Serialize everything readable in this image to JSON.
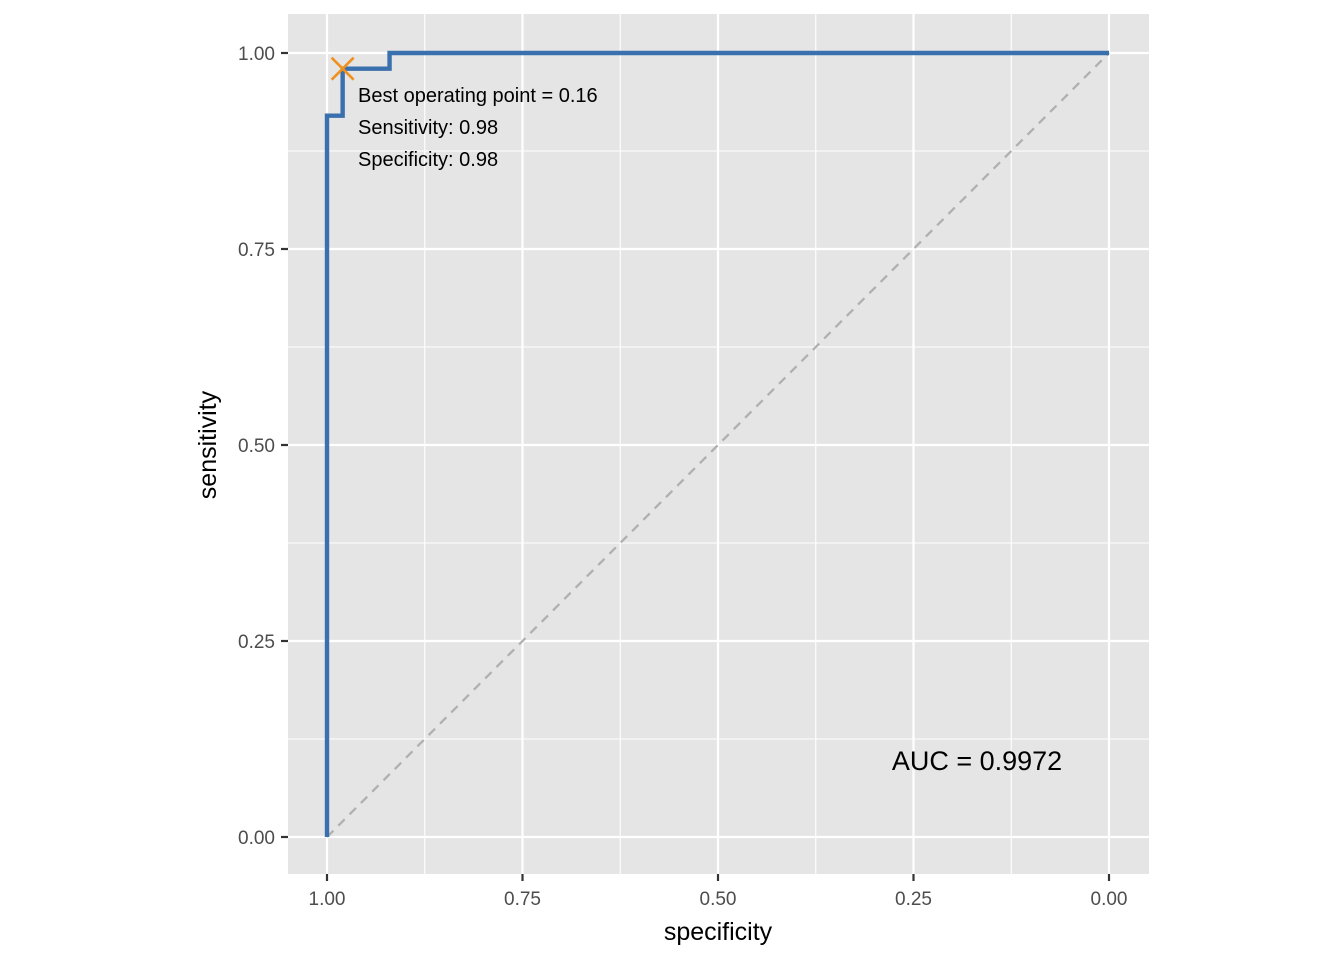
{
  "chart_data": {
    "type": "line",
    "xlabel": "specificity",
    "ylabel": "sensitivity",
    "x_reversed": true,
    "xlim": [
      1.0,
      0.0
    ],
    "ylim": [
      0.0,
      1.0
    ],
    "x_ticks": [
      {
        "value": 1.0,
        "label": "1.00"
      },
      {
        "value": 0.75,
        "label": "0.75"
      },
      {
        "value": 0.5,
        "label": "0.50"
      },
      {
        "value": 0.25,
        "label": "0.25"
      },
      {
        "value": 0.0,
        "label": "0.00"
      }
    ],
    "y_ticks": [
      {
        "value": 0.0,
        "label": "0.00"
      },
      {
        "value": 0.25,
        "label": "0.25"
      },
      {
        "value": 0.5,
        "label": "0.50"
      },
      {
        "value": 0.75,
        "label": "0.75"
      },
      {
        "value": 1.0,
        "label": "1.00"
      }
    ],
    "grid": true,
    "series": [
      {
        "color": "#3a70ad",
        "points": [
          {
            "specificity": 1.0,
            "sensitivity": 0.0
          },
          {
            "specificity": 1.0,
            "sensitivity": 0.92
          },
          {
            "specificity": 0.98,
            "sensitivity": 0.92
          },
          {
            "specificity": 0.98,
            "sensitivity": 0.98
          },
          {
            "specificity": 0.92,
            "sensitivity": 0.98
          },
          {
            "specificity": 0.92,
            "sensitivity": 1.0
          },
          {
            "specificity": 0.0,
            "sensitivity": 1.0
          }
        ]
      }
    ],
    "reference_line": {
      "from": {
        "specificity": 1.0,
        "sensitivity": 0.0
      },
      "to": {
        "specificity": 0.0,
        "sensitivity": 1.0
      },
      "style": "dashed",
      "color": "#b0b0b0"
    },
    "best_point": {
      "specificity": 0.98,
      "sensitivity": 0.98,
      "marker": "x",
      "color": "#f0901e"
    },
    "annotations": [
      "Best operating point = 0.16",
      "Sensitivity: 0.98",
      "Specificity: 0.98"
    ],
    "auc_label": "AUC = 0.9972",
    "colors": {
      "panel_background": "#e5e5e5",
      "grid": "#ffffff",
      "tick_text": "#4d4d4d"
    }
  }
}
